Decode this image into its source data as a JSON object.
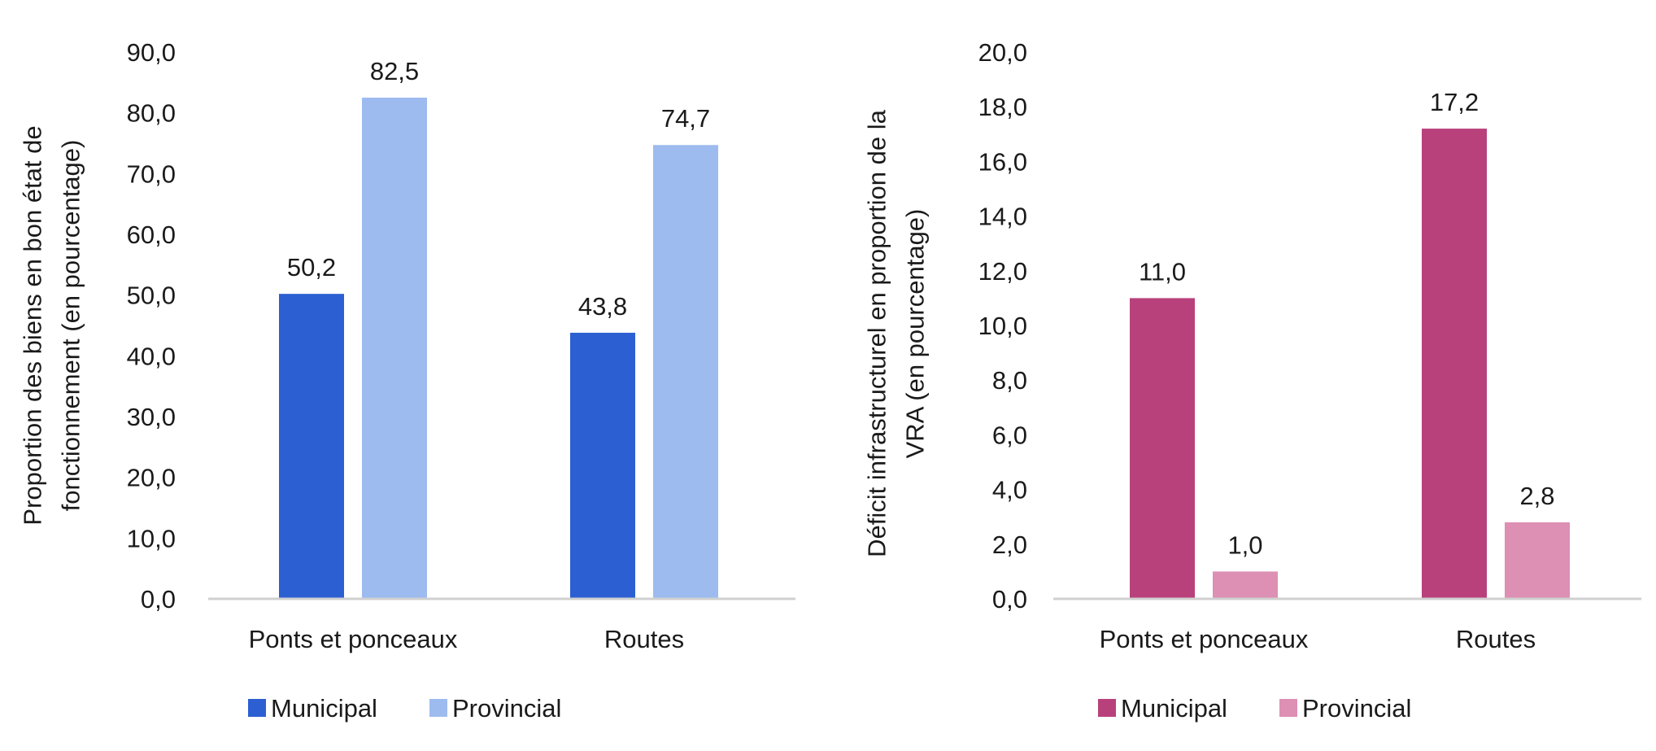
{
  "chart_data": [
    {
      "type": "bar",
      "categories": [
        "Ponts et ponceaux",
        "Routes"
      ],
      "series": [
        {
          "name": "Municipal",
          "values": [
            50.2,
            43.8
          ],
          "color": "#2c5fd1"
        },
        {
          "name": "Provincial",
          "values": [
            82.5,
            74.7
          ],
          "color": "#9dbbef"
        }
      ],
      "data_labels": [
        [
          "50,2",
          "43,8"
        ],
        [
          "82,5",
          "74,7"
        ]
      ],
      "ylabel_lines": [
        "Proportion des biens en bon état de",
        "fonctionnement (en pourcentage)"
      ],
      "ylim": [
        0,
        90
      ],
      "yticks": [
        0,
        10,
        20,
        30,
        40,
        50,
        60,
        70,
        80,
        90
      ],
      "ytick_labels": [
        "0,0",
        "10,0",
        "20,0",
        "30,0",
        "40,0",
        "50,0",
        "60,0",
        "70,0",
        "80,0",
        "90,0"
      ],
      "legend": "bottom",
      "grid": false
    },
    {
      "type": "bar",
      "categories": [
        "Ponts et ponceaux",
        "Routes"
      ],
      "series": [
        {
          "name": "Municipal",
          "values": [
            11.0,
            17.2
          ],
          "color": "#b8417c"
        },
        {
          "name": "Provincial",
          "values": [
            1.0,
            2.8
          ],
          "color": "#dd8fb4"
        }
      ],
      "data_labels": [
        [
          "11,0",
          "17,2"
        ],
        [
          "1,0",
          "2,8"
        ]
      ],
      "ylabel_lines": [
        "Déficit infrastructurel en proportion de la",
        "VRA (en pourcentage)"
      ],
      "ylim": [
        0,
        20
      ],
      "yticks": [
        0,
        2,
        4,
        6,
        8,
        10,
        12,
        14,
        16,
        18,
        20
      ],
      "ytick_labels": [
        "0,0",
        "2,0",
        "4,0",
        "6,0",
        "8,0",
        "10,0",
        "12,0",
        "14,0",
        "16,0",
        "18,0",
        "20,0"
      ],
      "legend": "bottom",
      "grid": false
    }
  ]
}
